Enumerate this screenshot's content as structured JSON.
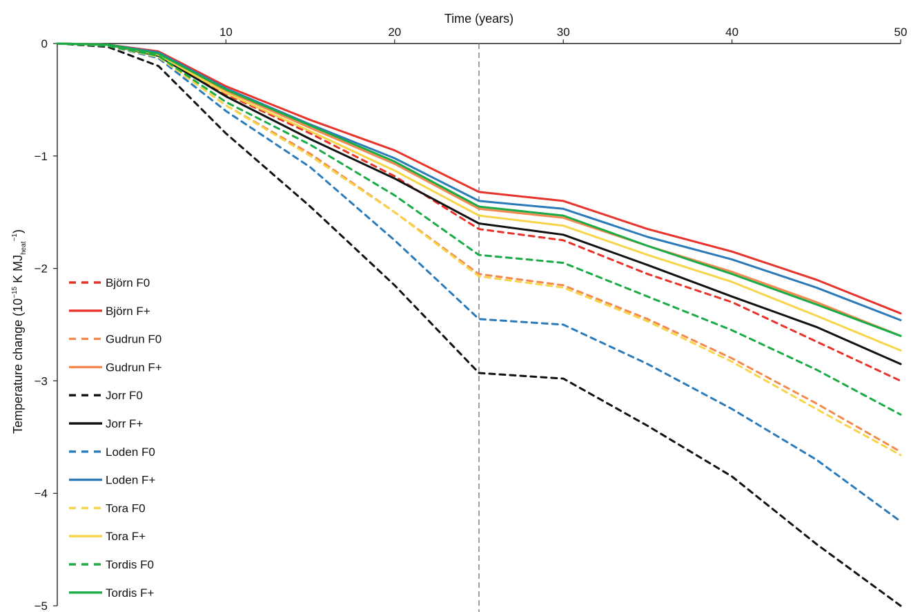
{
  "chart_data": {
    "type": "line",
    "title": "",
    "xlabel": "Time (years)",
    "ylabel": {
      "prefix": "Temperature change (10",
      "exp": "−15",
      "mid": " K MJ",
      "sub": "heat",
      "sup2": "−1",
      "suffix": ")"
    },
    "xlim": [
      0,
      50
    ],
    "ylim": [
      -5,
      0
    ],
    "x_ticks": [
      10,
      20,
      30,
      40,
      50
    ],
    "y_ticks": [
      0,
      -1,
      -2,
      -3,
      -4,
      -5
    ],
    "x_axis_position": "top",
    "grid": false,
    "legend_position": "left",
    "reference_line": {
      "x": 25,
      "style": "dashed",
      "color": "#888888"
    },
    "series": [
      {
        "name": "Björn F0",
        "color": "#e8332a",
        "dash": true,
        "x": [
          0,
          3,
          6,
          10,
          15,
          20,
          25,
          30,
          35,
          40,
          45,
          50
        ],
        "y": [
          0,
          -0.01,
          -0.1,
          -0.45,
          -0.8,
          -1.18,
          -1.65,
          -1.75,
          -2.05,
          -2.3,
          -2.65,
          -3.0
        ]
      },
      {
        "name": "Björn F+",
        "color": "#e8332a",
        "dash": false,
        "x": [
          0,
          3,
          6,
          10,
          15,
          20,
          25,
          30,
          35,
          40,
          45,
          50
        ],
        "y": [
          0,
          -0.01,
          -0.07,
          -0.38,
          -0.68,
          -0.95,
          -1.32,
          -1.4,
          -1.65,
          -1.85,
          -2.1,
          -2.4
        ]
      },
      {
        "name": "Gudrun F0",
        "color": "#f4894f",
        "dash": true,
        "x": [
          0,
          3,
          6,
          10,
          15,
          20,
          25,
          30,
          35,
          40,
          45,
          50
        ],
        "y": [
          0,
          -0.02,
          -0.12,
          -0.55,
          -0.98,
          -1.5,
          -2.05,
          -2.15,
          -2.45,
          -2.8,
          -3.2,
          -3.63
        ]
      },
      {
        "name": "Gudrun F+",
        "color": "#f4894f",
        "dash": false,
        "x": [
          0,
          3,
          6,
          10,
          15,
          20,
          25,
          30,
          35,
          40,
          45,
          50
        ],
        "y": [
          0,
          -0.01,
          -0.09,
          -0.42,
          -0.75,
          -1.07,
          -1.47,
          -1.55,
          -1.8,
          -2.03,
          -2.3,
          -2.6
        ]
      },
      {
        "name": "Jorr F0",
        "color": "#111111",
        "dash": true,
        "x": [
          0,
          3,
          6,
          10,
          15,
          20,
          25,
          30,
          35,
          40,
          45,
          50
        ],
        "y": [
          0,
          -0.03,
          -0.2,
          -0.8,
          -1.45,
          -2.15,
          -2.93,
          -2.98,
          -3.4,
          -3.85,
          -4.45,
          -5.0
        ]
      },
      {
        "name": "Jorr F+",
        "color": "#111111",
        "dash": false,
        "x": [
          0,
          3,
          6,
          10,
          15,
          20,
          25,
          30,
          35,
          40,
          45,
          50
        ],
        "y": [
          0,
          -0.01,
          -0.11,
          -0.47,
          -0.85,
          -1.2,
          -1.6,
          -1.7,
          -1.97,
          -2.25,
          -2.52,
          -2.85
        ]
      },
      {
        "name": "Loden F0",
        "color": "#2b7bba",
        "dash": true,
        "x": [
          0,
          3,
          6,
          10,
          15,
          20,
          25,
          30,
          35,
          40,
          45,
          50
        ],
        "y": [
          0,
          -0.02,
          -0.13,
          -0.6,
          -1.1,
          -1.75,
          -2.45,
          -2.5,
          -2.85,
          -3.25,
          -3.7,
          -4.25
        ]
      },
      {
        "name": "Loden F+",
        "color": "#2b7bba",
        "dash": false,
        "x": [
          0,
          3,
          6,
          10,
          15,
          20,
          25,
          30,
          35,
          40,
          45,
          50
        ],
        "y": [
          0,
          -0.01,
          -0.08,
          -0.4,
          -0.72,
          -1.02,
          -1.4,
          -1.47,
          -1.72,
          -1.92,
          -2.17,
          -2.46
        ]
      },
      {
        "name": "Tora F0",
        "color": "#f6d54a",
        "dash": true,
        "x": [
          0,
          3,
          6,
          10,
          15,
          20,
          25,
          30,
          35,
          40,
          45,
          50
        ],
        "y": [
          0,
          -0.02,
          -0.12,
          -0.55,
          -1.0,
          -1.5,
          -2.07,
          -2.17,
          -2.47,
          -2.83,
          -3.25,
          -3.66
        ]
      },
      {
        "name": "Tora F+",
        "color": "#f6d54a",
        "dash": false,
        "x": [
          0,
          3,
          6,
          10,
          15,
          20,
          25,
          30,
          35,
          40,
          45,
          50
        ],
        "y": [
          0,
          -0.01,
          -0.1,
          -0.44,
          -0.78,
          -1.13,
          -1.53,
          -1.62,
          -1.88,
          -2.12,
          -2.42,
          -2.73
        ]
      },
      {
        "name": "Tordis F0",
        "color": "#1aab47",
        "dash": true,
        "x": [
          0,
          3,
          6,
          10,
          15,
          20,
          25,
          30,
          35,
          40,
          45,
          50
        ],
        "y": [
          0,
          -0.02,
          -0.11,
          -0.52,
          -0.9,
          -1.35,
          -1.88,
          -1.95,
          -2.25,
          -2.55,
          -2.9,
          -3.3
        ]
      },
      {
        "name": "Tordis F+",
        "color": "#1aab47",
        "dash": false,
        "x": [
          0,
          3,
          6,
          10,
          15,
          20,
          25,
          30,
          35,
          40,
          45,
          50
        ],
        "y": [
          0,
          -0.01,
          -0.09,
          -0.41,
          -0.73,
          -1.05,
          -1.45,
          -1.53,
          -1.8,
          -2.05,
          -2.32,
          -2.6
        ]
      }
    ]
  }
}
